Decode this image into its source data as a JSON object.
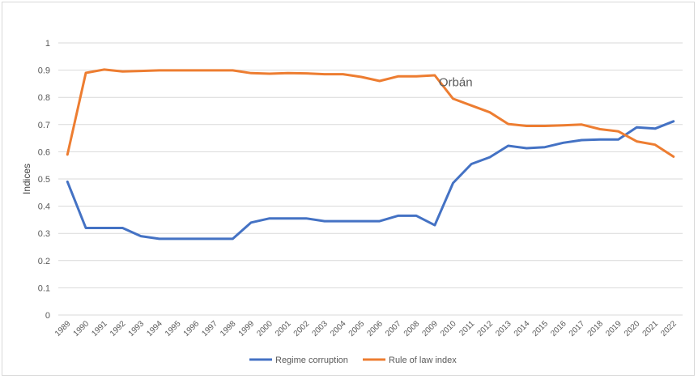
{
  "chart_data": {
    "type": "line",
    "title": "",
    "xlabel": "",
    "ylabel": "Indices",
    "ylim": [
      0,
      1
    ],
    "yticks": [
      "0",
      "0.1",
      "0.2",
      "0.3",
      "0.4",
      "0.5",
      "0.6",
      "0.7",
      "0.8",
      "0.9",
      "1"
    ],
    "grid": true,
    "legend_position": "bottom",
    "x": [
      "1989",
      "1990",
      "1991",
      "1992",
      "1993",
      "1994",
      "1995",
      "1996",
      "1997",
      "1998",
      "1999",
      "2000",
      "2001",
      "2002",
      "2003",
      "2004",
      "2005",
      "2006",
      "2007",
      "2008",
      "2009",
      "2010",
      "2011",
      "2012",
      "2013",
      "2014",
      "2015",
      "2016",
      "2017",
      "2018",
      "2019",
      "2020",
      "2021",
      "2022"
    ],
    "series": [
      {
        "name": "Regime corruption",
        "color": "#4472c4",
        "values": [
          0.49,
          0.32,
          0.32,
          0.32,
          0.29,
          0.28,
          0.28,
          0.28,
          0.28,
          0.28,
          0.34,
          0.355,
          0.355,
          0.355,
          0.345,
          0.345,
          0.345,
          0.345,
          0.365,
          0.365,
          0.33,
          0.485,
          0.555,
          0.58,
          0.622,
          0.613,
          0.617,
          0.633,
          0.643,
          0.645,
          0.645,
          0.69,
          0.685,
          0.712
        ]
      },
      {
        "name": "Rule of law index",
        "color": "#ed7d31",
        "values": [
          0.59,
          0.89,
          0.902,
          0.895,
          0.897,
          0.899,
          0.899,
          0.899,
          0.899,
          0.899,
          0.889,
          0.887,
          0.889,
          0.888,
          0.885,
          0.885,
          0.875,
          0.86,
          0.877,
          0.877,
          0.881,
          0.795,
          0.77,
          0.745,
          0.702,
          0.695,
          0.695,
          0.697,
          0.7,
          0.683,
          0.675,
          0.638,
          0.626,
          0.582
        ]
      }
    ],
    "annotations": [
      {
        "text": "Orbán",
        "x": "2009",
        "y": 0.88
      }
    ]
  }
}
